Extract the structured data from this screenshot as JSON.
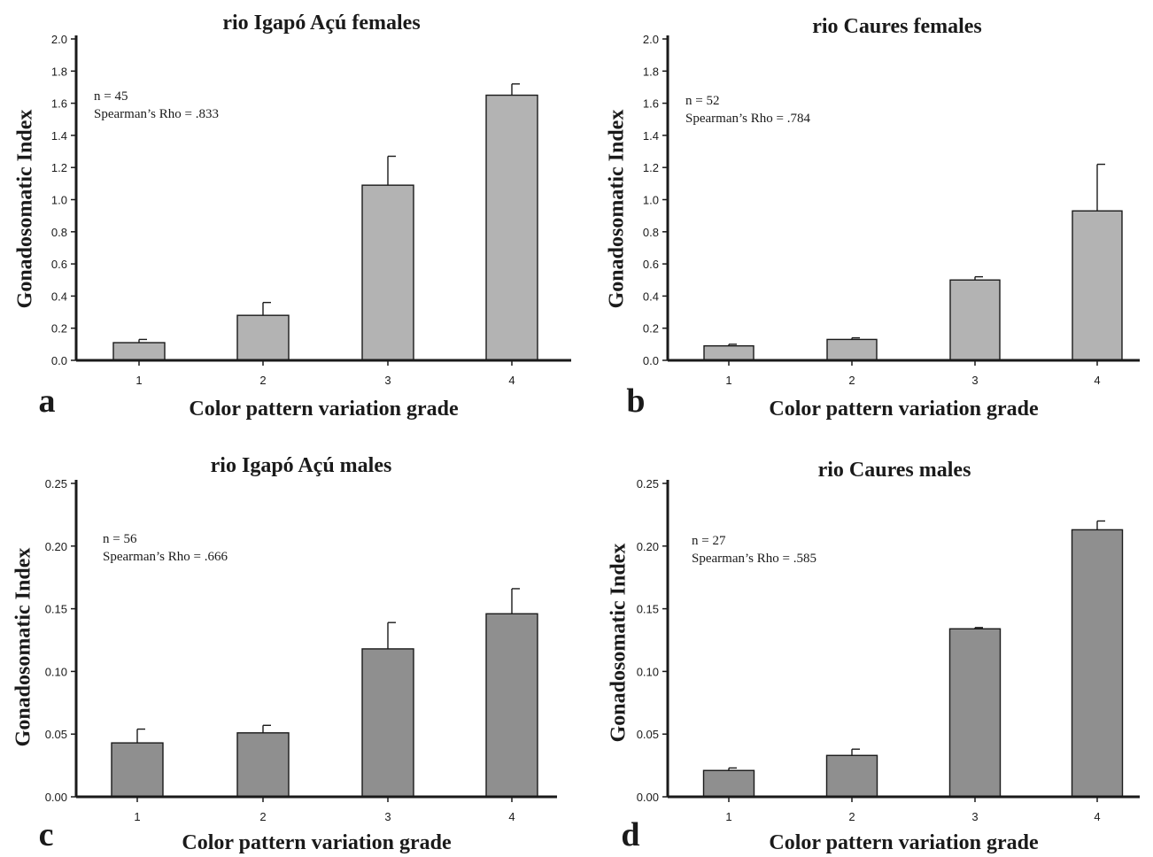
{
  "chart_data": [
    {
      "type": "bar",
      "panel": "a",
      "title": "rio Igapó Açú females",
      "xlabel": "Color pattern variation grade",
      "ylabel": "Gonadosomatic Index",
      "categories": [
        "1",
        "2",
        "3",
        "4"
      ],
      "values": [
        0.11,
        0.28,
        1.09,
        1.65
      ],
      "errors": [
        0.02,
        0.08,
        0.18,
        0.07
      ],
      "ylim": [
        0,
        2.0
      ],
      "yticks": [
        "0.0",
        "0.2",
        "0.4",
        "0.6",
        "0.8",
        "1.0",
        "1.2",
        "1.4",
        "1.6",
        "1.8",
        "2.0"
      ],
      "annotation": [
        "n = 45",
        "Spearman’s Rho = .833"
      ],
      "bar_color": "#b3b3b3"
    },
    {
      "type": "bar",
      "panel": "b",
      "title": "rio Caures females",
      "xlabel": "Color pattern variation grade",
      "ylabel": "Gonadosomatic Index",
      "categories": [
        "1",
        "2",
        "3",
        "4"
      ],
      "values": [
        0.09,
        0.13,
        0.5,
        0.93
      ],
      "errors": [
        0.01,
        0.01,
        0.02,
        0.29
      ],
      "ylim": [
        0,
        2.0
      ],
      "yticks": [
        "0.0",
        "0.2",
        "0.4",
        "0.6",
        "0.8",
        "1.0",
        "1.2",
        "1.4",
        "1.6",
        "1.8",
        "2.0"
      ],
      "annotation": [
        "n = 52",
        "Spearman’s Rho = .784"
      ],
      "bar_color": "#b3b3b3"
    },
    {
      "type": "bar",
      "panel": "c",
      "title": "rio Igapó Açú males",
      "xlabel": "Color pattern variation grade",
      "ylabel": "Gonadosomatic Index",
      "categories": [
        "1",
        "2",
        "3",
        "4"
      ],
      "values": [
        0.043,
        0.051,
        0.118,
        0.146
      ],
      "errors": [
        0.011,
        0.006,
        0.021,
        0.02
      ],
      "ylim": [
        0,
        0.25
      ],
      "yticks": [
        "0.00",
        "0.05",
        "0.10",
        "0.15",
        "0.20",
        "0.25"
      ],
      "annotation": [
        "n = 56",
        "Spearman’s Rho = .666"
      ],
      "bar_color": "#8f8f8f"
    },
    {
      "type": "bar",
      "panel": "d",
      "title": "rio Caures males",
      "xlabel": "Color pattern variation grade",
      "ylabel": "Gonadosomatic Index",
      "categories": [
        "1",
        "2",
        "3",
        "4"
      ],
      "values": [
        0.021,
        0.033,
        0.134,
        0.213
      ],
      "errors": [
        0.002,
        0.005,
        0.001,
        0.007
      ],
      "ylim": [
        0,
        0.25
      ],
      "yticks": [
        "0.00",
        "0.05",
        "0.10",
        "0.15",
        "0.20",
        "0.25"
      ],
      "annotation": [
        "n = 27",
        "Spearman’s Rho = .585"
      ],
      "bar_color": "#8f8f8f"
    }
  ]
}
